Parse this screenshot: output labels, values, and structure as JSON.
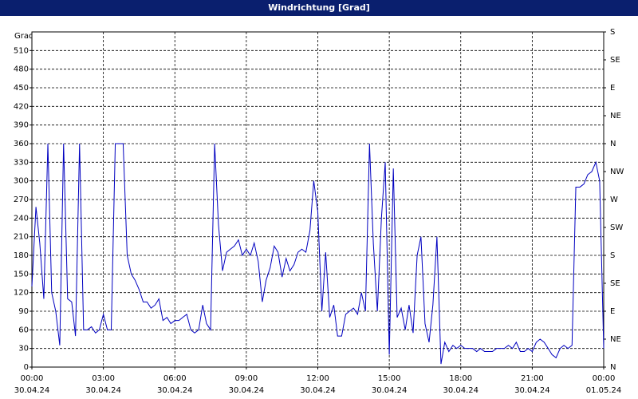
{
  "chart_data": {
    "type": "line",
    "title": "Windrichtung [Grad]",
    "y_label": "Grad",
    "xlim": [
      0,
      24
    ],
    "xticks": [
      {
        "value": 0,
        "label": "00:00"
      },
      {
        "value": 3,
        "label": "03:00"
      },
      {
        "value": 6,
        "label": "06:00"
      },
      {
        "value": 9,
        "label": "09:00"
      },
      {
        "value": 12,
        "label": "12:00"
      },
      {
        "value": 15,
        "label": "15:00"
      },
      {
        "value": 18,
        "label": "18:00"
      },
      {
        "value": 21,
        "label": "21:00"
      },
      {
        "value": 24,
        "label": "00:00"
      }
    ],
    "xtick_dates": [
      "30.04.24",
      "30.04.24",
      "30.04.24",
      "30.04.24",
      "30.04.24",
      "30.04.24",
      "30.04.24",
      "30.04.24",
      "01.05.24"
    ],
    "ylim": [
      0,
      540
    ],
    "yticks": [
      0,
      30,
      60,
      90,
      120,
      150,
      180,
      210,
      240,
      270,
      300,
      330,
      360,
      390,
      420,
      450,
      480,
      510
    ],
    "y2lim": [
      0,
      540
    ],
    "y2ticks": [
      {
        "value": 0,
        "label": "N"
      },
      {
        "value": 45,
        "label": "NE"
      },
      {
        "value": 90,
        "label": "E"
      },
      {
        "value": 135,
        "label": "SE"
      },
      {
        "value": 180,
        "label": "S"
      },
      {
        "value": 225,
        "label": "SW"
      },
      {
        "value": 270,
        "label": "W"
      },
      {
        "value": 315,
        "label": "NW"
      },
      {
        "value": 360,
        "label": "N"
      },
      {
        "value": 405,
        "label": "NE"
      },
      {
        "value": 450,
        "label": "E"
      },
      {
        "value": 495,
        "label": "SE"
      },
      {
        "value": 540,
        "label": "S"
      }
    ],
    "grid": true,
    "series": [
      {
        "color": "#0000c0",
        "x": [
          0,
          0.17,
          0.33,
          0.5,
          0.67,
          0.83,
          1,
          1.17,
          1.33,
          1.5,
          1.67,
          1.83,
          2,
          2.17,
          2.33,
          2.5,
          2.67,
          2.83,
          3,
          3.17,
          3.33,
          3.5,
          3.67,
          3.83,
          4,
          4.17,
          4.33,
          4.5,
          4.67,
          4.83,
          5,
          5.17,
          5.33,
          5.5,
          5.67,
          5.83,
          6,
          6.17,
          6.33,
          6.5,
          6.67,
          6.83,
          7,
          7.17,
          7.33,
          7.5,
          7.67,
          7.83,
          8,
          8.17,
          8.33,
          8.5,
          8.67,
          8.83,
          9,
          9.17,
          9.33,
          9.5,
          9.67,
          9.83,
          10,
          10.17,
          10.33,
          10.5,
          10.67,
          10.83,
          11,
          11.17,
          11.33,
          11.5,
          11.67,
          11.83,
          12,
          12.17,
          12.33,
          12.5,
          12.67,
          12.83,
          13,
          13.17,
          13.33,
          13.5,
          13.67,
          13.83,
          14,
          14.17,
          14.33,
          14.5,
          14.67,
          14.83,
          15,
          15.17,
          15.33,
          15.5,
          15.67,
          15.83,
          16,
          16.17,
          16.33,
          16.5,
          16.67,
          16.83,
          17,
          17.17,
          17.33,
          17.5,
          17.67,
          17.83,
          18,
          18.17,
          18.33,
          18.5,
          18.67,
          18.83,
          19,
          19.17,
          19.33,
          19.5,
          19.67,
          19.83,
          20,
          20.17,
          20.33,
          20.5,
          20.67,
          20.83,
          21,
          21.17,
          21.33,
          21.5,
          21.67,
          21.83,
          22,
          22.17,
          22.33,
          22.5,
          22.67,
          22.83,
          23,
          23.17,
          23.33,
          23.5,
          23.67,
          23.83,
          24
        ],
        "values": [
          130,
          258,
          200,
          110,
          360,
          120,
          90,
          35,
          360,
          110,
          105,
          50,
          360,
          60,
          60,
          65,
          55,
          60,
          85,
          60,
          60,
          360,
          360,
          360,
          180,
          150,
          140,
          125,
          105,
          105,
          95,
          100,
          110,
          75,
          80,
          70,
          75,
          75,
          80,
          85,
          60,
          55,
          60,
          100,
          70,
          60,
          360,
          230,
          155,
          185,
          190,
          195,
          205,
          180,
          190,
          180,
          200,
          170,
          105,
          140,
          160,
          195,
          185,
          145,
          175,
          155,
          165,
          185,
          190,
          185,
          220,
          300,
          250,
          90,
          185,
          80,
          100,
          50,
          50,
          85,
          90,
          95,
          85,
          120,
          90,
          360,
          200,
          90,
          240,
          330,
          20,
          320,
          80,
          95,
          60,
          100,
          55,
          180,
          210,
          70,
          40,
          100,
          210,
          5,
          40,
          25,
          35,
          30,
          35,
          30,
          30,
          30,
          25,
          30,
          25,
          25,
          25,
          30,
          30,
          30,
          35,
          30,
          40,
          25,
          25,
          30,
          25,
          40,
          45,
          40,
          30,
          20,
          15,
          30,
          35,
          30,
          35,
          290,
          290,
          295,
          310,
          315,
          330,
          300,
          30
        ]
      }
    ]
  }
}
